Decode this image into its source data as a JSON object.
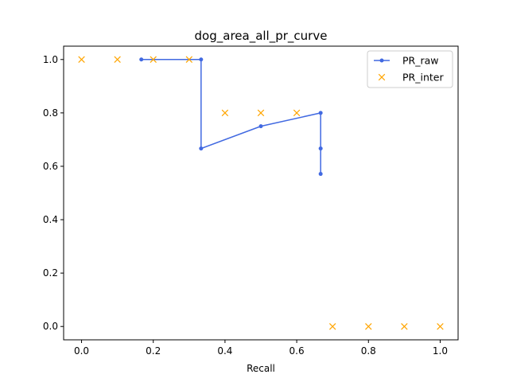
{
  "chart_data": {
    "type": "line",
    "title": "dog_area_all_pr_curve",
    "xlabel": "Recall",
    "ylabel": "",
    "xlim": [
      -0.05,
      1.05
    ],
    "ylim": [
      -0.05,
      1.05
    ],
    "xticks": [
      0.0,
      0.2,
      0.4,
      0.6,
      0.8,
      1.0
    ],
    "xtick_labels": [
      "0.0",
      "0.2",
      "0.4",
      "0.6",
      "0.8",
      "1.0"
    ],
    "yticks": [
      0.0,
      0.2,
      0.4,
      0.6,
      0.8,
      1.0
    ],
    "ytick_labels": [
      "0.0",
      "0.2",
      "0.4",
      "0.6",
      "0.8",
      "1.0"
    ],
    "grid": false,
    "legend_position": "top-right",
    "series": [
      {
        "name": "PR_raw",
        "style": "line-with-dot-markers",
        "color": "#4169e1",
        "x": [
          0.1667,
          0.3333,
          0.3333,
          0.5,
          0.6667,
          0.6667,
          0.6667
        ],
        "y": [
          1.0,
          1.0,
          0.6667,
          0.75,
          0.8,
          0.6667,
          0.5714
        ]
      },
      {
        "name": "PR_inter",
        "style": "x-markers",
        "color": "#ffa500",
        "x": [
          0.0,
          0.1,
          0.2,
          0.3,
          0.4,
          0.5,
          0.6,
          0.7,
          0.8,
          0.9,
          1.0
        ],
        "y": [
          1.0,
          1.0,
          1.0,
          1.0,
          0.8,
          0.8,
          0.8,
          0.0,
          0.0,
          0.0,
          0.0
        ]
      }
    ]
  }
}
